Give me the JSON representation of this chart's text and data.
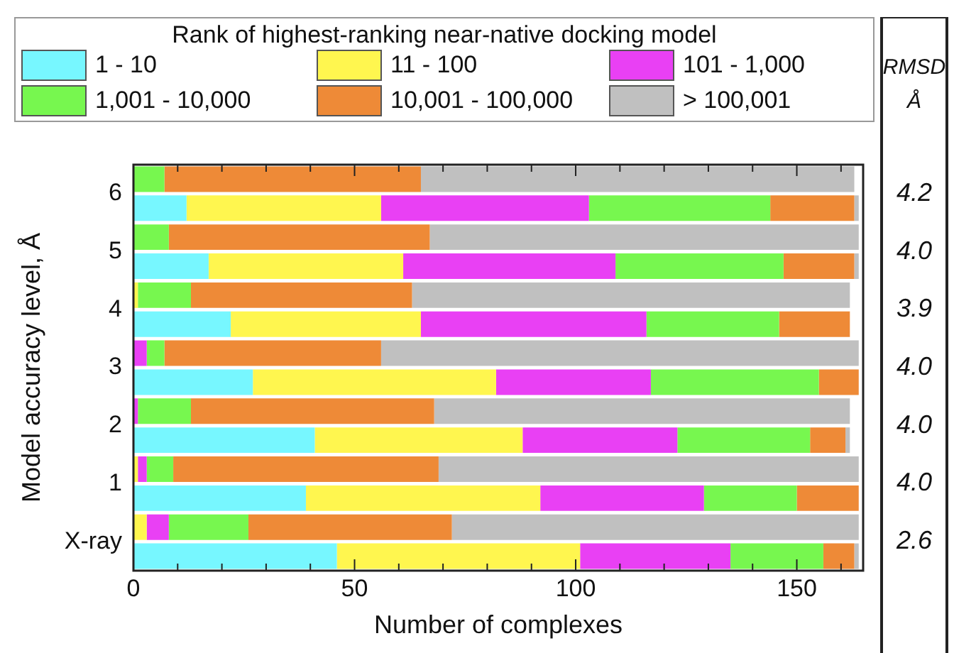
{
  "chart_data": {
    "type": "bar",
    "orientation": "horizontal",
    "stacked": true,
    "xlabel": "Number of complexes",
    "ylabel": "Model accuracy level, Å",
    "legend_title": "Rank of highest-ranking near-native docking model",
    "legend": "top",
    "categories": [
      "6",
      null,
      "5",
      null,
      "4",
      null,
      "3",
      null,
      "2",
      null,
      "1",
      null,
      "X-ray",
      null
    ],
    "series": [
      {
        "name": "1 - 10",
        "color": "#77f7ff",
        "values": [
          null,
          12,
          null,
          17,
          null,
          22,
          null,
          27,
          null,
          41,
          null,
          39,
          null,
          46
        ]
      },
      {
        "name": "11 - 100",
        "color": "#fff64f",
        "values": [
          null,
          44,
          null,
          44,
          1,
          43,
          null,
          55,
          null,
          47,
          1,
          53,
          3,
          55
        ]
      },
      {
        "name": "101 - 1,000",
        "color": "#e940f4",
        "values": [
          null,
          47,
          null,
          48,
          null,
          51,
          3,
          35,
          1,
          35,
          2,
          37,
          5,
          34
        ]
      },
      {
        "name": "1,001 - 10,000",
        "color": "#77f74f",
        "values": [
          7,
          41,
          8,
          38,
          12,
          30,
          4,
          38,
          12,
          30,
          6,
          21,
          18,
          21
        ]
      },
      {
        "name": "10,001 - 100,000",
        "color": "#ee8a37",
        "values": [
          58,
          19,
          59,
          16,
          50,
          16,
          49,
          9,
          55,
          8,
          60,
          14,
          46,
          7
        ]
      },
      {
        "name": "> 100,001",
        "color": "#c0c0c0",
        "values": [
          98,
          1,
          97,
          1,
          99,
          null,
          108,
          null,
          94,
          1,
          95,
          null,
          92,
          1
        ]
      }
    ],
    "xlim": [
      0,
      165
    ],
    "xticks": [
      0,
      {
        "value": 10,
        "label": null
      },
      {
        "value": 20,
        "label": null
      },
      {
        "value": 30,
        "label": null
      },
      {
        "value": 40,
        "label": null
      },
      50,
      {
        "value": 60,
        "label": null
      },
      {
        "value": 70,
        "label": null
      },
      {
        "value": 80,
        "label": null
      },
      {
        "value": 90,
        "label": null
      },
      100,
      {
        "value": 110,
        "label": null
      },
      {
        "value": 120,
        "label": null
      },
      {
        "value": 130,
        "label": null
      },
      {
        "value": 140,
        "label": null
      },
      150,
      {
        "value": 160,
        "label": null
      }
    ],
    "annotations": [
      "RMSD Å",
      "4.2",
      "4.0",
      "3.9",
      "4.0",
      "4.0",
      "4.0",
      "2.6"
    ]
  }
}
